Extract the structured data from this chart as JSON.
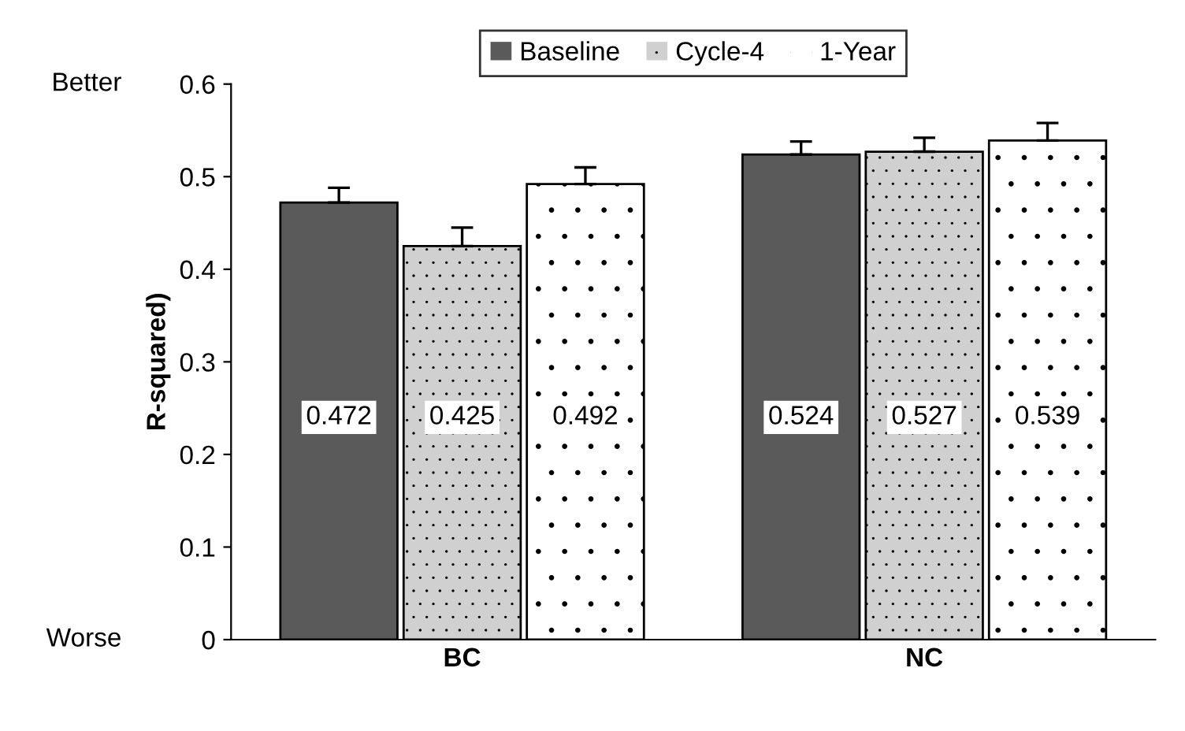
{
  "chart_data": {
    "type": "bar",
    "ylabel": "R-squared)",
    "categories": [
      "BC",
      "NC"
    ],
    "series": [
      {
        "name": "Baseline",
        "color": "#5a5a5a",
        "values": [
          0.472,
          0.524
        ],
        "errors": [
          [
            0.472,
            0.488
          ],
          [
            0.524,
            0.538
          ]
        ]
      },
      {
        "name": "Cycle-4",
        "color": "#d0d0d0",
        "values": [
          0.425,
          0.527
        ],
        "errors": [
          [
            0.425,
            0.445
          ],
          [
            0.527,
            0.542
          ]
        ]
      },
      {
        "name": "1-Year",
        "color": "#ffffff",
        "values": [
          0.492,
          0.539
        ],
        "errors": [
          [
            0.492,
            0.51
          ],
          [
            0.539,
            0.558
          ]
        ]
      }
    ],
    "ylim": [
      0,
      0.6
    ],
    "yticks": [
      0,
      0.1,
      0.2,
      0.3,
      0.4,
      0.5,
      0.6
    ],
    "data_labels": true,
    "legend": "top",
    "grid": false,
    "annotations": [
      "Better",
      "Worse"
    ]
  }
}
